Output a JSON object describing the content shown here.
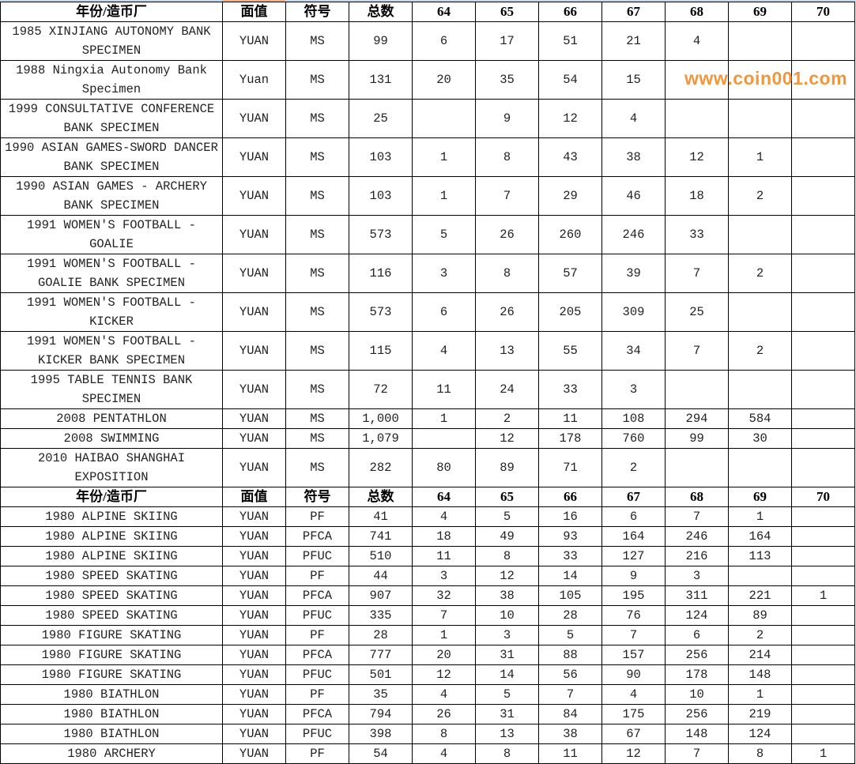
{
  "colors": {
    "border": "#000000",
    "watermark": "#f0963c"
  },
  "header": [
    "年份/造币厂",
    "面值",
    "符号",
    "总数",
    "64",
    "65",
    "66",
    "67",
    "68",
    "69",
    "70"
  ],
  "sections": [
    {
      "rows": [
        [
          "1985 XINJIANG AUTONOMY BANK SPECIMEN",
          "YUAN",
          "MS",
          "99",
          "6",
          "17",
          "51",
          "21",
          "4",
          "",
          ""
        ],
        [
          "1988 Ningxia Autonomy Bank Specimen",
          "Yuan",
          "MS",
          "131",
          "20",
          "35",
          "54",
          "15",
          "",
          "",
          ""
        ],
        [
          "1999 CONSULTATIVE CONFERENCE BANK SPECIMEN",
          "YUAN",
          "MS",
          "25",
          "",
          "9",
          "12",
          "4",
          "",
          "",
          ""
        ],
        [
          "1990 ASIAN GAMES-SWORD DANCER BANK SPECIMEN",
          "YUAN",
          "MS",
          "103",
          "1",
          "8",
          "43",
          "38",
          "12",
          "1",
          ""
        ],
        [
          "1990 ASIAN GAMES - ARCHERY BANK SPECIMEN",
          "YUAN",
          "MS",
          "103",
          "1",
          "7",
          "29",
          "46",
          "18",
          "2",
          ""
        ],
        [
          "1991 WOMEN'S FOOTBALL - GOALIE",
          "YUAN",
          "MS",
          "573",
          "5",
          "26",
          "260",
          "246",
          "33",
          "",
          ""
        ],
        [
          "1991 WOMEN'S FOOTBALL - GOALIE BANK SPECIMEN",
          "YUAN",
          "MS",
          "116",
          "3",
          "8",
          "57",
          "39",
          "7",
          "2",
          ""
        ],
        [
          "1991 WOMEN'S FOOTBALL - KICKER",
          "YUAN",
          "MS",
          "573",
          "6",
          "26",
          "205",
          "309",
          "25",
          "",
          ""
        ],
        [
          "1991 WOMEN'S FOOTBALL - KICKER BANK SPECIMEN",
          "YUAN",
          "MS",
          "115",
          "4",
          "13",
          "55",
          "34",
          "7",
          "2",
          ""
        ],
        [
          "1995 TABLE TENNIS BANK SPECIMEN",
          "YUAN",
          "MS",
          "72",
          "11",
          "24",
          "33",
          "3",
          "",
          "",
          ""
        ],
        [
          "2008 PENTATHLON",
          "YUAN",
          "MS",
          "1,000",
          "1",
          "2",
          "11",
          "108",
          "294",
          "584",
          ""
        ],
        [
          "2008 SWIMMING",
          "YUAN",
          "MS",
          "1,079",
          "",
          "12",
          "178",
          "760",
          "99",
          "30",
          ""
        ],
        [
          "2010 HAIBAO SHANGHAI EXPOSITION",
          "YUAN",
          "MS",
          "282",
          "80",
          "89",
          "71",
          "2",
          "",
          "",
          ""
        ]
      ]
    },
    {
      "rows": [
        [
          "1980 ALPINE SKIING",
          "YUAN",
          "PF",
          "41",
          "4",
          "5",
          "16",
          "6",
          "7",
          "1",
          ""
        ],
        [
          "1980 ALPINE SKIING",
          "YUAN",
          "PFCA",
          "741",
          "18",
          "49",
          "93",
          "164",
          "246",
          "164",
          ""
        ],
        [
          "1980 ALPINE SKIING",
          "YUAN",
          "PFUC",
          "510",
          "11",
          "8",
          "33",
          "127",
          "216",
          "113",
          ""
        ],
        [
          "1980 SPEED SKATING",
          "YUAN",
          "PF",
          "44",
          "3",
          "12",
          "14",
          "9",
          "3",
          "",
          ""
        ],
        [
          "1980 SPEED SKATING",
          "YUAN",
          "PFCA",
          "907",
          "32",
          "38",
          "105",
          "195",
          "311",
          "221",
          "1"
        ],
        [
          "1980 SPEED SKATING",
          "YUAN",
          "PFUC",
          "335",
          "7",
          "10",
          "28",
          "76",
          "124",
          "89",
          ""
        ],
        [
          "1980 FIGURE SKATING",
          "YUAN",
          "PF",
          "28",
          "1",
          "3",
          "5",
          "7",
          "6",
          "2",
          ""
        ],
        [
          "1980 FIGURE SKATING",
          "YUAN",
          "PFCA",
          "777",
          "20",
          "31",
          "88",
          "157",
          "256",
          "214",
          ""
        ],
        [
          "1980 FIGURE SKATING",
          "YUAN",
          "PFUC",
          "501",
          "12",
          "14",
          "56",
          "90",
          "178",
          "148",
          ""
        ],
        [
          "1980 BIATHLON",
          "YUAN",
          "PF",
          "35",
          "4",
          "5",
          "7",
          "4",
          "10",
          "1",
          ""
        ],
        [
          "1980 BIATHLON",
          "YUAN",
          "PFCA",
          "794",
          "26",
          "31",
          "84",
          "175",
          "256",
          "219",
          ""
        ],
        [
          "1980 BIATHLON",
          "YUAN",
          "PFUC",
          "398",
          "8",
          "13",
          "38",
          "67",
          "148",
          "124",
          ""
        ],
        [
          "1980 ARCHERY",
          "YUAN",
          "PF",
          "54",
          "4",
          "8",
          "11",
          "12",
          "7",
          "8",
          "1"
        ]
      ]
    }
  ],
  "watermark": "www.coin001.com"
}
